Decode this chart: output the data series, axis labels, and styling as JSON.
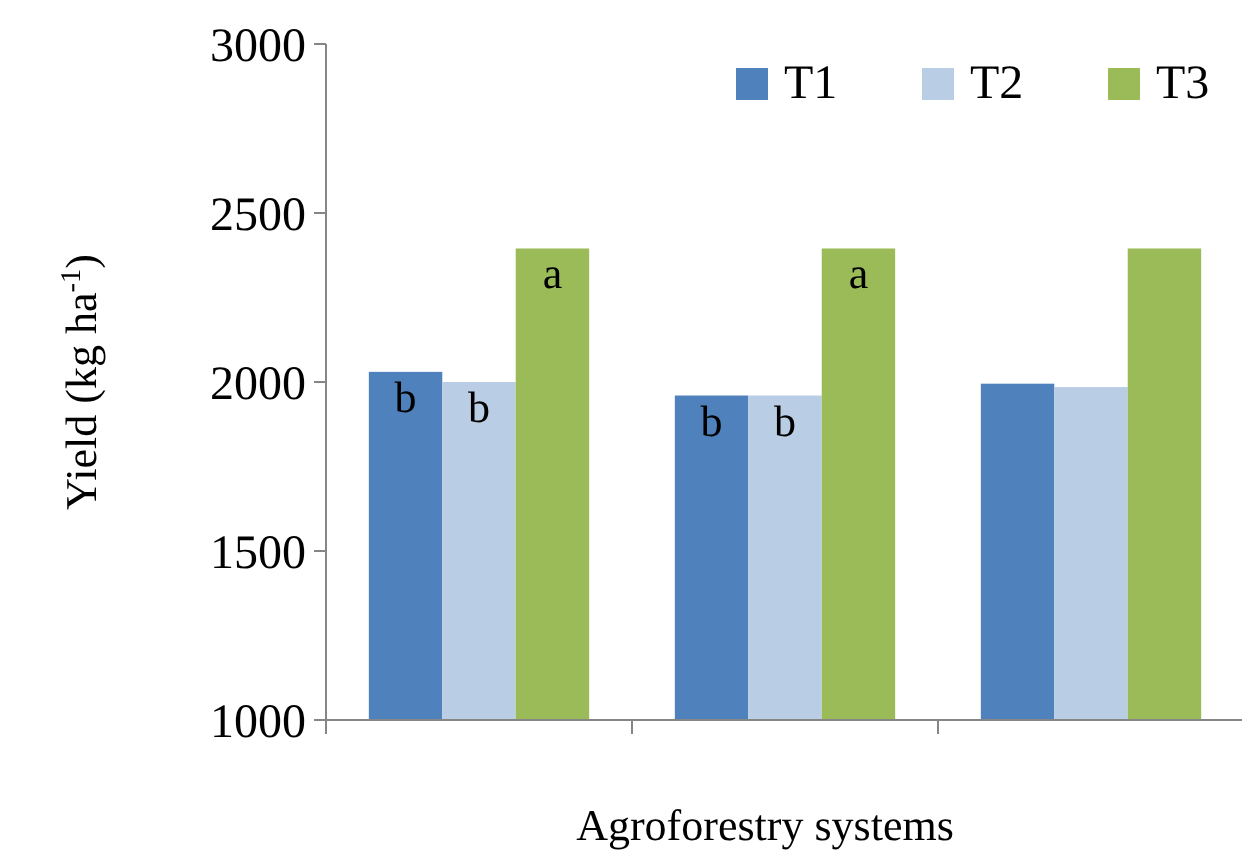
{
  "chart_data": {
    "type": "bar",
    "xlabel": "Agroforestry systems",
    "ylabel": "Yield (kg ha$^{-1}$)",
    "categories": [
      null,
      null,
      null
    ],
    "series": [
      {
        "name": "T1",
        "color": "#4f81bd",
        "values": [
          2030,
          1960,
          1995
        ],
        "value_labels": [
          "b",
          "b",
          null
        ]
      },
      {
        "name": "T2",
        "color": "#b9cde5",
        "values": [
          2000,
          1960,
          1985
        ],
        "value_labels": [
          "b",
          "b",
          null
        ]
      },
      {
        "name": "T3",
        "color": "#9bbb59",
        "values": [
          2395,
          2395,
          2395
        ],
        "value_labels": [
          "a",
          "a",
          null
        ]
      }
    ],
    "ylim": [
      1000,
      3000
    ],
    "yticks": [
      1000,
      1500,
      2000,
      2500,
      3000
    ],
    "grid": false,
    "legend": "top right"
  }
}
